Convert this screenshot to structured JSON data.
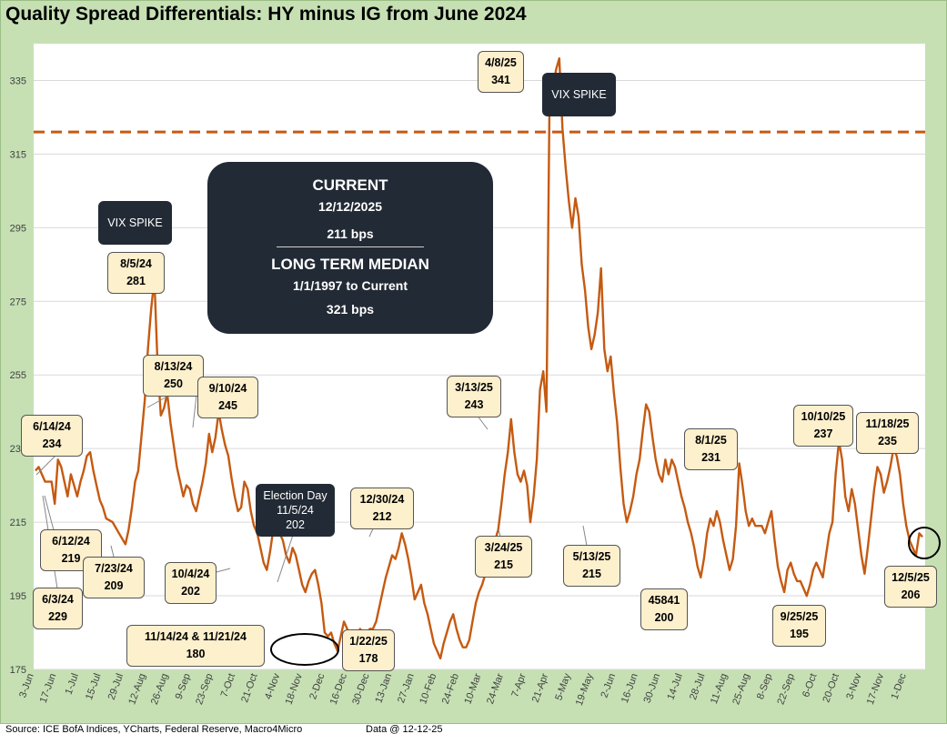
{
  "title": "Quality Spread Differentials: HY minus IG from June 2024",
  "source": "Source: ICE BofA Indices, YCharts, Federal Reserve, Macro4Micro",
  "as_of": "Data @ 12-12-25",
  "summary": {
    "current_heading": "CURRENT",
    "current_date": "12/12/2025",
    "current_value": "211 bps",
    "median_heading": "LONG TERM MEDIAN",
    "median_range": "1/1/1997 to Current",
    "median_value": "321 bps"
  },
  "dark_labels": {
    "vix_1": "VIX SPIKE",
    "vix_2": "VIX SPIKE",
    "election_l1": "Election Day",
    "election_l2": "11/5/24",
    "election_l3": "202"
  },
  "callouts": [
    {
      "id": "c-0805",
      "date": "8/5/24",
      "value": "281"
    },
    {
      "id": "c-0813",
      "date": "8/13/24",
      "value": "250"
    },
    {
      "id": "c-0910",
      "date": "9/10/24",
      "value": "245"
    },
    {
      "id": "c-0614",
      "date": "6/14/24",
      "value": "234"
    },
    {
      "id": "c-0612",
      "date": "6/12/24",
      "value": "219"
    },
    {
      "id": "c-0723",
      "date": "7/23/24",
      "value": "209"
    },
    {
      "id": "c-0603",
      "date": "6/3/24",
      "value": "229"
    },
    {
      "id": "c-1004",
      "date": "10/4/24",
      "value": "202"
    },
    {
      "id": "c-1114",
      "date": "11/14/24 & 11/21/24",
      "value": "180"
    },
    {
      "id": "c-1230",
      "date": "12/30/24",
      "value": "212"
    },
    {
      "id": "c-0122",
      "date": "1/22/25",
      "value": "178"
    },
    {
      "id": "c-0313",
      "date": "3/13/25",
      "value": "243"
    },
    {
      "id": "c-0324",
      "date": "3/24/25",
      "value": "215"
    },
    {
      "id": "c-0408",
      "date": "4/8/25",
      "value": "341"
    },
    {
      "id": "c-0513",
      "date": "5/13/25",
      "value": "215"
    },
    {
      "id": "c-45841",
      "date": "45841",
      "value": "200"
    },
    {
      "id": "c-0801",
      "date": "8/1/25",
      "value": "231"
    },
    {
      "id": "c-0925",
      "date": "9/25/25",
      "value": "195"
    },
    {
      "id": "c-1010",
      "date": "10/10/25",
      "value": "237"
    },
    {
      "id": "c-1118",
      "date": "11/18/25",
      "value": "235"
    },
    {
      "id": "c-1205",
      "date": "12/5/25",
      "value": "206"
    }
  ],
  "chart_data": {
    "type": "line",
    "title": "Quality Spread Differentials: HY minus IG from June 2024",
    "ylim": [
      175,
      345
    ],
    "yticks": [
      175,
      195,
      215,
      235,
      255,
      275,
      295,
      315,
      335
    ],
    "x_ticks": [
      "3-Jun",
      "17-Jun",
      "1-Jul",
      "15-Jul",
      "29-Jul",
      "12-Aug",
      "26-Aug",
      "9-Sep",
      "23-Sep",
      "7-Oct",
      "21-Oct",
      "4-Nov",
      "18-Nov",
      "2-Dec",
      "16-Dec",
      "30-Dec",
      "13-Jan",
      "27-Jan",
      "10-Feb",
      "24-Feb",
      "10-Mar",
      "24-Mar",
      "7-Apr",
      "21-Apr",
      "5-May",
      "19-May",
      "2-Jun",
      "16-Jun",
      "30-Jun",
      "14-Jul",
      "28-Jul",
      "11-Aug",
      "25-Aug",
      "8-Sep",
      "22-Sep",
      "6-Oct",
      "20-Oct",
      "3-Nov",
      "17-Nov",
      "1-Dec"
    ],
    "median_line": 321,
    "grid": true,
    "series": [
      {
        "name": "HY minus IG",
        "color": "#c55a11",
        "points": [
          [
            0,
            229
          ],
          [
            1,
            230
          ],
          [
            3,
            226
          ],
          [
            5,
            226
          ],
          [
            6,
            220
          ],
          [
            7,
            232
          ],
          [
            8,
            230
          ],
          [
            9,
            226
          ],
          [
            10,
            222
          ],
          [
            11,
            228
          ],
          [
            12,
            225
          ],
          [
            13,
            222
          ],
          [
            14,
            226
          ],
          [
            15,
            229
          ],
          [
            16,
            233
          ],
          [
            17,
            234
          ],
          [
            18,
            229
          ],
          [
            19,
            225
          ],
          [
            20,
            221
          ],
          [
            21,
            219
          ],
          [
            22,
            216
          ],
          [
            24,
            215
          ],
          [
            26,
            212
          ],
          [
            28,
            209
          ],
          [
            29,
            213
          ],
          [
            30,
            219
          ],
          [
            31,
            226
          ],
          [
            32,
            229
          ],
          [
            34,
            248
          ],
          [
            35,
            262
          ],
          [
            36,
            273
          ],
          [
            37,
            281
          ],
          [
            38,
            258
          ],
          [
            39,
            244
          ],
          [
            40,
            246
          ],
          [
            41,
            250
          ],
          [
            42,
            242
          ],
          [
            43,
            236
          ],
          [
            44,
            230
          ],
          [
            45,
            226
          ],
          [
            46,
            222
          ],
          [
            47,
            225
          ],
          [
            48,
            224
          ],
          [
            49,
            220
          ],
          [
            50,
            218
          ],
          [
            51,
            222
          ],
          [
            52,
            226
          ],
          [
            53,
            231
          ],
          [
            54,
            239
          ],
          [
            55,
            234
          ],
          [
            56,
            238
          ],
          [
            57,
            245
          ],
          [
            58,
            240
          ],
          [
            59,
            236
          ],
          [
            60,
            233
          ],
          [
            61,
            227
          ],
          [
            62,
            222
          ],
          [
            63,
            218
          ],
          [
            64,
            219
          ],
          [
            65,
            226
          ],
          [
            66,
            224
          ],
          [
            67,
            218
          ],
          [
            68,
            214
          ],
          [
            69,
            212
          ],
          [
            70,
            208
          ],
          [
            71,
            204
          ],
          [
            72,
            202
          ],
          [
            73,
            207
          ],
          [
            74,
            213
          ],
          [
            75,
            215
          ],
          [
            76,
            212
          ],
          [
            77,
            210
          ],
          [
            78,
            206
          ],
          [
            79,
            204
          ],
          [
            80,
            208
          ],
          [
            81,
            206
          ],
          [
            82,
            202
          ],
          [
            83,
            198
          ],
          [
            84,
            196
          ],
          [
            85,
            199
          ],
          [
            86,
            201
          ],
          [
            87,
            202
          ],
          [
            88,
            198
          ],
          [
            89,
            193
          ],
          [
            90,
            185
          ],
          [
            91,
            184
          ],
          [
            92,
            185
          ],
          [
            93,
            182
          ],
          [
            94,
            180
          ],
          [
            95,
            184
          ],
          [
            96,
            188
          ],
          [
            97,
            186
          ],
          [
            98,
            180
          ],
          [
            99,
            182
          ],
          [
            100,
            184
          ],
          [
            101,
            186
          ],
          [
            102,
            185
          ],
          [
            103,
            184
          ],
          [
            104,
            186
          ],
          [
            105,
            186
          ],
          [
            106,
            188
          ],
          [
            107,
            192
          ],
          [
            108,
            196
          ],
          [
            109,
            200
          ],
          [
            110,
            203
          ],
          [
            111,
            206
          ],
          [
            112,
            205
          ],
          [
            113,
            208
          ],
          [
            114,
            212
          ],
          [
            115,
            209
          ],
          [
            116,
            205
          ],
          [
            117,
            200
          ],
          [
            118,
            194
          ],
          [
            119,
            196
          ],
          [
            120,
            198
          ],
          [
            121,
            193
          ],
          [
            122,
            190
          ],
          [
            123,
            186
          ],
          [
            124,
            182
          ],
          [
            125,
            180
          ],
          [
            126,
            178
          ],
          [
            127,
            182
          ],
          [
            128,
            185
          ],
          [
            129,
            188
          ],
          [
            130,
            190
          ],
          [
            131,
            186
          ],
          [
            132,
            183
          ],
          [
            133,
            181
          ],
          [
            134,
            181
          ],
          [
            135,
            183
          ],
          [
            136,
            188
          ],
          [
            137,
            193
          ],
          [
            138,
            196
          ],
          [
            139,
            198
          ],
          [
            140,
            201
          ],
          [
            141,
            203
          ],
          [
            142,
            207
          ],
          [
            143,
            210
          ],
          [
            144,
            213
          ],
          [
            145,
            220
          ],
          [
            146,
            228
          ],
          [
            147,
            234
          ],
          [
            148,
            243
          ],
          [
            149,
            234
          ],
          [
            150,
            228
          ],
          [
            151,
            226
          ],
          [
            152,
            229
          ],
          [
            153,
            225
          ],
          [
            154,
            215
          ],
          [
            155,
            222
          ],
          [
            156,
            232
          ],
          [
            157,
            251
          ],
          [
            158,
            256
          ],
          [
            159,
            245
          ],
          [
            160,
            333
          ],
          [
            161,
            333
          ],
          [
            162,
            338
          ],
          [
            163,
            341
          ],
          [
            164,
            322
          ],
          [
            165,
            311
          ],
          [
            166,
            302
          ],
          [
            167,
            295
          ],
          [
            168,
            303
          ],
          [
            169,
            298
          ],
          [
            170,
            285
          ],
          [
            171,
            278
          ],
          [
            172,
            268
          ],
          [
            173,
            262
          ],
          [
            174,
            266
          ],
          [
            175,
            272
          ],
          [
            176,
            284
          ],
          [
            177,
            262
          ],
          [
            178,
            256
          ],
          [
            179,
            260
          ],
          [
            180,
            250
          ],
          [
            181,
            242
          ],
          [
            182,
            230
          ],
          [
            183,
            220
          ],
          [
            184,
            215
          ],
          [
            185,
            218
          ],
          [
            186,
            222
          ],
          [
            187,
            228
          ],
          [
            188,
            232
          ],
          [
            189,
            240
          ],
          [
            190,
            247
          ],
          [
            191,
            245
          ],
          [
            192,
            238
          ],
          [
            193,
            232
          ],
          [
            194,
            228
          ],
          [
            195,
            226
          ],
          [
            196,
            232
          ],
          [
            197,
            228
          ],
          [
            198,
            232
          ],
          [
            199,
            230
          ],
          [
            200,
            226
          ],
          [
            201,
            222
          ],
          [
            202,
            219
          ],
          [
            203,
            215
          ],
          [
            204,
            212
          ],
          [
            205,
            208
          ],
          [
            206,
            203
          ],
          [
            207,
            200
          ],
          [
            208,
            205
          ],
          [
            209,
            212
          ],
          [
            210,
            216
          ],
          [
            211,
            214
          ],
          [
            212,
            218
          ],
          [
            213,
            215
          ],
          [
            214,
            210
          ],
          [
            215,
            206
          ],
          [
            216,
            202
          ],
          [
            217,
            205
          ],
          [
            218,
            214
          ],
          [
            219,
            231
          ],
          [
            220,
            225
          ],
          [
            221,
            218
          ],
          [
            222,
            214
          ],
          [
            223,
            216
          ],
          [
            224,
            214
          ],
          [
            225,
            214
          ],
          [
            226,
            214
          ],
          [
            227,
            212
          ],
          [
            228,
            215
          ],
          [
            229,
            218
          ],
          [
            230,
            210
          ],
          [
            231,
            203
          ],
          [
            232,
            199
          ],
          [
            233,
            196
          ],
          [
            234,
            202
          ],
          [
            235,
            204
          ],
          [
            236,
            201
          ],
          [
            237,
            199
          ],
          [
            238,
            199
          ],
          [
            239,
            197
          ],
          [
            240,
            195
          ],
          [
            241,
            198
          ],
          [
            242,
            202
          ],
          [
            243,
            204
          ],
          [
            244,
            202
          ],
          [
            245,
            200
          ],
          [
            246,
            206
          ],
          [
            247,
            212
          ],
          [
            248,
            215
          ],
          [
            249,
            228
          ],
          [
            250,
            237
          ],
          [
            251,
            232
          ],
          [
            252,
            222
          ],
          [
            253,
            218
          ],
          [
            254,
            224
          ],
          [
            255,
            220
          ],
          [
            256,
            213
          ],
          [
            257,
            206
          ],
          [
            258,
            201
          ],
          [
            259,
            208
          ],
          [
            260,
            216
          ],
          [
            261,
            224
          ],
          [
            262,
            230
          ],
          [
            263,
            228
          ],
          [
            264,
            223
          ],
          [
            265,
            226
          ],
          [
            266,
            230
          ],
          [
            267,
            235
          ],
          [
            268,
            233
          ],
          [
            269,
            228
          ],
          [
            270,
            220
          ],
          [
            271,
            214
          ],
          [
            272,
            210
          ],
          [
            273,
            208
          ],
          [
            274,
            206
          ],
          [
            275,
            212
          ],
          [
            276,
            211
          ]
        ]
      }
    ],
    "annotations": [
      "VIX SPIKE",
      "VIX SPIKE",
      "Election Day 11/5/24 202"
    ]
  }
}
